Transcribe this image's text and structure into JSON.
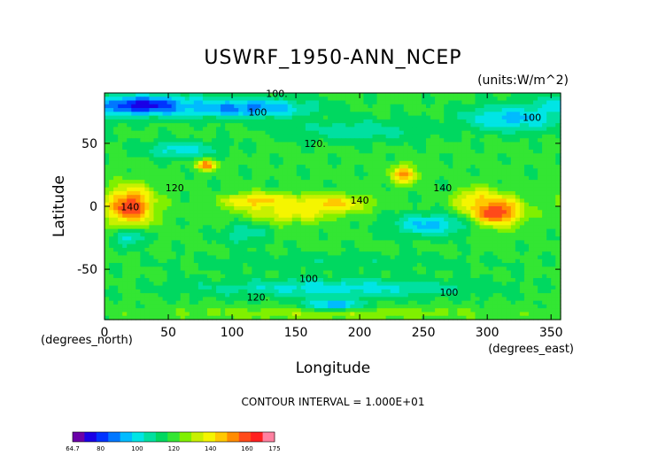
{
  "chart_data": {
    "type": "heatmap",
    "title": "USWRF_1950-ANN_NCEP",
    "units": "(units:W/m^2)",
    "xlabel": "Longitude",
    "ylabel": "Latitude",
    "x_unit_label": "(degrees_east)",
    "y_unit_label": "(degrees_north)",
    "xlim": [
      0,
      357.5
    ],
    "ylim": [
      -90,
      90
    ],
    "x_ticks": [
      0,
      50,
      100,
      150,
      200,
      250,
      300,
      350
    ],
    "y_ticks": [
      50,
      0,
      -50
    ],
    "contour_interval_text": "CONTOUR INTERVAL = 1.000E+01",
    "contour_labels": [
      {
        "text": "100.",
        "x": 135,
        "y": 87
      },
      {
        "text": "100",
        "x": 120,
        "y": 72
      },
      {
        "text": "100",
        "x": 335,
        "y": 68
      },
      {
        "text": "120.",
        "x": 165,
        "y": 47
      },
      {
        "text": "120",
        "x": 55,
        "y": 12
      },
      {
        "text": "140",
        "x": 200,
        "y": 2
      },
      {
        "text": "140",
        "x": 265,
        "y": 12
      },
      {
        "text": "140",
        "x": 20,
        "y": -3
      },
      {
        "text": "100",
        "x": 160,
        "y": -60
      },
      {
        "text": "120.",
        "x": 120,
        "y": -75
      },
      {
        "text": "100",
        "x": 270,
        "y": -71
      }
    ],
    "colorbar": {
      "tick_labels": [
        "64.7",
        "80",
        "100",
        "120",
        "140",
        "160",
        "175"
      ],
      "tick_values": [
        64.7,
        80,
        100,
        120,
        140,
        160,
        175
      ],
      "vmin": 64.7,
      "vmax": 175,
      "colors": [
        "#6a00a8",
        "#1a00e6",
        "#0033ff",
        "#0077ff",
        "#00bbff",
        "#00e5e5",
        "#00e0a0",
        "#00d860",
        "#33e633",
        "#80f000",
        "#c8f000",
        "#f5f500",
        "#ffc800",
        "#ff8c00",
        "#ff4a1a",
        "#ff2020",
        "#ff80a0"
      ]
    },
    "fields": {
      "background_value": 118,
      "blobs": [
        {
          "lon": 20,
          "lat": 0,
          "rlon": 22,
          "rlat": 18,
          "value": 162
        },
        {
          "lon": 120,
          "lat": 4,
          "rlon": 30,
          "rlat": 7,
          "value": 150
        },
        {
          "lon": 175,
          "lat": 2,
          "rlon": 35,
          "rlat": 8,
          "value": 148
        },
        {
          "lon": 145,
          "lat": -4,
          "rlon": 40,
          "rlat": 11,
          "value": 140
        },
        {
          "lon": 305,
          "lat": -4,
          "rlon": 25,
          "rlat": 14,
          "value": 165
        },
        {
          "lon": 290,
          "lat": 5,
          "rlon": 15,
          "rlat": 10,
          "value": 145
        },
        {
          "lon": 80,
          "lat": 33,
          "rlon": 10,
          "rlat": 5,
          "value": 155
        },
        {
          "lon": 235,
          "lat": 25,
          "rlon": 12,
          "rlat": 9,
          "value": 150
        },
        {
          "lon": 255,
          "lat": -15,
          "rlon": 35,
          "rlat": 10,
          "value": 95
        },
        {
          "lon": 20,
          "lat": -25,
          "rlon": 15,
          "rlat": 8,
          "value": 100
        },
        {
          "lon": 110,
          "lat": -22,
          "rlon": 20,
          "rlat": 10,
          "value": 105
        },
        {
          "lon": 30,
          "lat": 80,
          "rlon": 45,
          "rlat": 9,
          "value": 72
        },
        {
          "lon": 110,
          "lat": 78,
          "rlon": 60,
          "rlat": 9,
          "value": 88
        },
        {
          "lon": 320,
          "lat": 70,
          "rlon": 45,
          "rlat": 12,
          "value": 95
        },
        {
          "lon": 200,
          "lat": 60,
          "rlon": 60,
          "rlat": 10,
          "value": 105
        },
        {
          "lon": 180,
          "lat": -65,
          "rlon": 120,
          "rlat": 9,
          "value": 100
        },
        {
          "lon": 180,
          "lat": -45,
          "rlon": 140,
          "rlat": 8,
          "value": 112
        },
        {
          "lon": 180,
          "lat": -85,
          "rlon": 160,
          "rlat": 6,
          "value": 128
        },
        {
          "lon": 180,
          "lat": -78,
          "rlon": 25,
          "rlat": 5,
          "value": 90
        },
        {
          "lon": 60,
          "lat": 45,
          "rlon": 35,
          "rlat": 8,
          "value": 100
        }
      ]
    }
  }
}
